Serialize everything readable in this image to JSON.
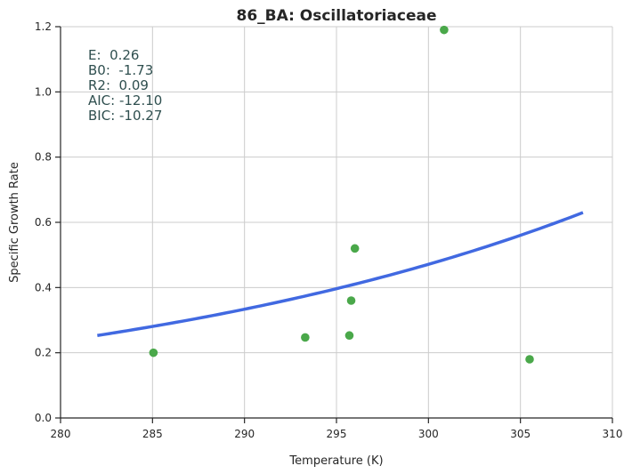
{
  "chart_data": {
    "type": "scatter",
    "title": "86_BA: Oscillatoriaceae",
    "xlabel": "Temperature (K)",
    "ylabel": "Specific Growth Rate",
    "xlim": [
      280,
      310
    ],
    "ylim": [
      0.0,
      1.2
    ],
    "x_ticks": [
      "280",
      "285",
      "290",
      "295",
      "300",
      "305",
      "310"
    ],
    "x_tick_values": [
      280,
      285,
      290,
      295,
      300,
      305,
      310
    ],
    "y_ticks": [
      "0.0",
      "0.2",
      "0.4",
      "0.6",
      "0.8",
      "1.0",
      "1.2"
    ],
    "y_tick_values": [
      0.0,
      0.2,
      0.4,
      0.6,
      0.8,
      1.0,
      1.2
    ],
    "grid": true,
    "points": {
      "color": "#4aa84a",
      "x": [
        285.05,
        293.3,
        295.7,
        295.8,
        296.0,
        300.85,
        305.5
      ],
      "y": [
        0.2,
        0.247,
        0.253,
        0.36,
        0.52,
        1.19,
        0.18
      ]
    },
    "fit_line": {
      "color": "#4169e1",
      "x_start": 282.0,
      "x_end": 308.4,
      "y_start": 0.253,
      "y_end": 0.63
    },
    "annotations": [
      {
        "label": "E:",
        "value": "0.26"
      },
      {
        "label": "B0:",
        "value": "-1.73"
      },
      {
        "label": "R2:",
        "value": "0.09"
      },
      {
        "label": "AIC:",
        "value": "-12.10"
      },
      {
        "label": "BIC:",
        "value": "-10.27"
      }
    ]
  },
  "stats": {
    "line1": "E:  0.26",
    "line2": "B0:  -1.73",
    "line3": "R2:  0.09",
    "line4": "AIC: -12.10",
    "line5": "BIC: -10.27"
  }
}
